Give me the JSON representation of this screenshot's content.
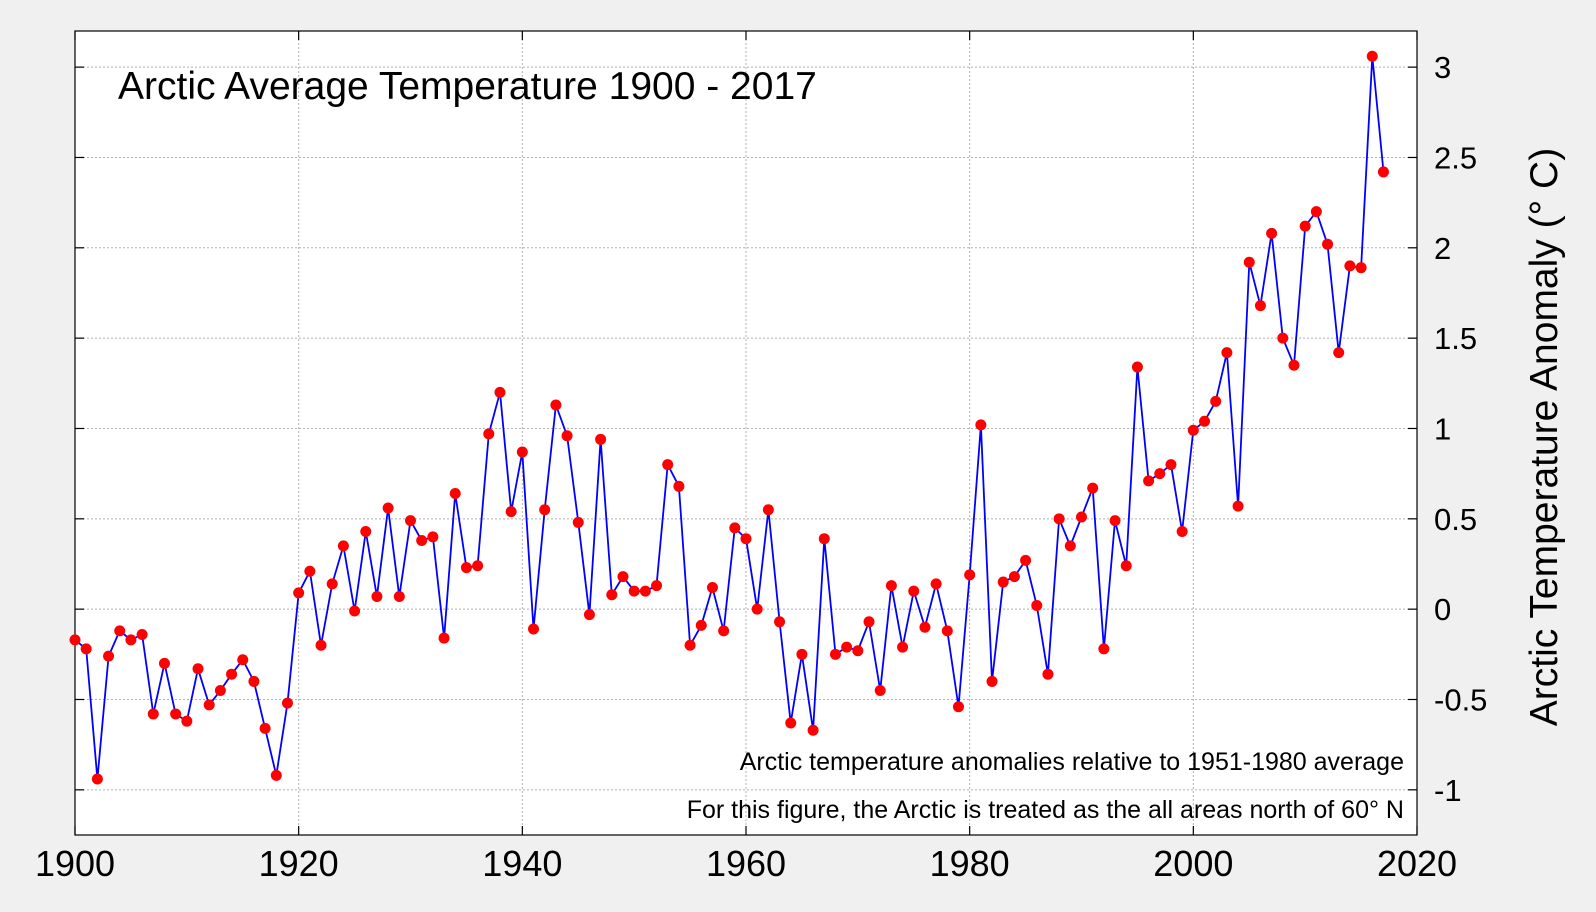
{
  "chart_data": {
    "type": "line",
    "title": "Arctic Average Temperature 1900 - 2017",
    "ylabel": "Arctic Temperature Anomaly (° C)",
    "xlabel": "",
    "annotations": [
      "Arctic temperature anomalies relative to 1951-1980 average",
      "For this figure, the Arctic is treated as the all areas north of 60° N"
    ],
    "xlim": [
      1900,
      2020
    ],
    "ylim": [
      -1.25,
      3.2
    ],
    "x_ticks": [
      1900,
      1920,
      1940,
      1960,
      1980,
      2000,
      2020
    ],
    "x_tick_labels": [
      "1900",
      "1920",
      "1940",
      "1960",
      "1980",
      "2000",
      "2020"
    ],
    "y_ticks": [
      -1,
      -0.5,
      0,
      0.5,
      1,
      1.5,
      2,
      2.5,
      3
    ],
    "y_tick_labels": [
      "-1",
      "-0.5",
      "0",
      "0.5",
      "1",
      "1.5",
      "2",
      "2.5",
      "3"
    ],
    "y_axis_side": "right",
    "grid": true,
    "colors": {
      "line": "#0000ff",
      "marker": "#ff0000",
      "background": "#ffffff",
      "grid": "#b0b0b0"
    },
    "series": [
      {
        "x": [
          1900,
          1901,
          1902,
          1903,
          1904,
          1905,
          1906,
          1907,
          1908,
          1909,
          1910,
          1911,
          1912,
          1913,
          1914,
          1915,
          1916,
          1917,
          1918,
          1919,
          1920,
          1921,
          1922,
          1923,
          1924,
          1925,
          1926,
          1927,
          1928,
          1929,
          1930,
          1931,
          1932,
          1933,
          1934,
          1935,
          1936,
          1937,
          1938,
          1939,
          1940,
          1941,
          1942,
          1943,
          1944,
          1945,
          1946,
          1947,
          1948,
          1949,
          1950,
          1951,
          1952,
          1953,
          1954,
          1955,
          1956,
          1957,
          1958,
          1959,
          1960,
          1961,
          1962,
          1963,
          1964,
          1965,
          1966,
          1967,
          1968,
          1969,
          1970,
          1971,
          1972,
          1973,
          1974,
          1975,
          1976,
          1977,
          1978,
          1979,
          1980,
          1981,
          1982,
          1983,
          1984,
          1985,
          1986,
          1987,
          1988,
          1989,
          1990,
          1991,
          1992,
          1993,
          1994,
          1995,
          1996,
          1997,
          1998,
          1999,
          2000,
          2001,
          2002,
          2003,
          2004,
          2005,
          2006,
          2007,
          2008,
          2009,
          2010,
          2011,
          2012,
          2013,
          2014,
          2015,
          2016,
          2017
        ],
        "values": [
          -0.17,
          -0.22,
          -0.94,
          -0.26,
          -0.12,
          -0.17,
          -0.14,
          -0.58,
          -0.3,
          -0.58,
          -0.62,
          -0.33,
          -0.53,
          -0.45,
          -0.36,
          -0.28,
          -0.4,
          -0.66,
          -0.92,
          -0.52,
          0.09,
          0.21,
          -0.2,
          0.14,
          0.35,
          -0.01,
          0.43,
          0.07,
          0.56,
          0.07,
          0.49,
          0.38,
          0.4,
          -0.16,
          0.64,
          0.23,
          0.24,
          0.97,
          1.2,
          0.54,
          0.87,
          -0.11,
          0.55,
          1.13,
          0.96,
          0.48,
          -0.03,
          0.94,
          0.08,
          0.18,
          0.1,
          0.1,
          0.13,
          0.8,
          0.68,
          -0.2,
          -0.09,
          0.12,
          -0.12,
          0.45,
          0.39,
          0.0,
          0.55,
          -0.07,
          -0.63,
          -0.25,
          -0.67,
          0.39,
          -0.25,
          -0.21,
          -0.23,
          -0.07,
          -0.45,
          0.13,
          -0.21,
          0.1,
          -0.1,
          0.14,
          -0.12,
          -0.54,
          0.19,
          1.02,
          -0.4,
          0.15,
          0.18,
          0.27,
          0.02,
          -0.36,
          0.5,
          0.35,
          0.51,
          0.67,
          -0.22,
          0.49,
          0.24,
          1.34,
          0.71,
          0.75,
          0.8,
          0.43,
          0.99,
          1.04,
          1.15,
          1.42,
          0.57,
          1.92,
          1.68,
          2.08,
          1.5,
          1.35,
          2.12,
          2.2,
          2.02,
          1.42,
          1.9,
          1.89,
          3.06,
          2.42
        ]
      }
    ]
  }
}
